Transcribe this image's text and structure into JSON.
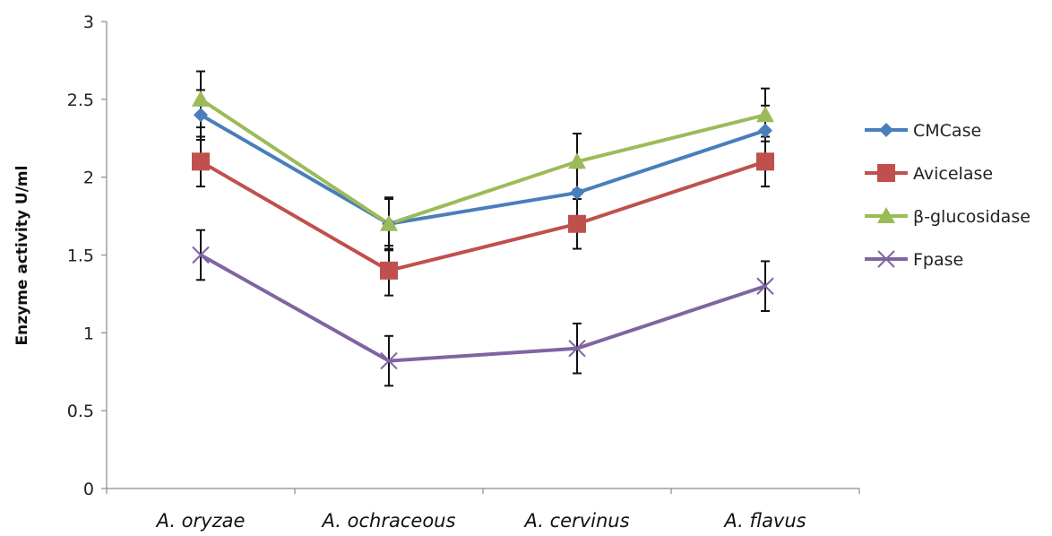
{
  "chart_data": {
    "type": "line",
    "categories": [
      "A. oryzae",
      "A. ochraceous",
      "A. cervinus",
      "A. flavus"
    ],
    "ylabel": "Enzyme activity U/ml",
    "xlabel": "",
    "ylim": [
      0,
      3
    ],
    "yticks": [
      "0",
      "0.5",
      "1",
      "1.5",
      "2",
      "2.5",
      "3"
    ],
    "grid": false,
    "legend_position": "right",
    "series": [
      {
        "name": "CMCase",
        "color": "#4a7ebb",
        "marker": "diamond",
        "values": [
          2.4,
          1.7,
          1.9,
          2.3
        ],
        "error": [
          0.16,
          0.16,
          0.16,
          0.16
        ]
      },
      {
        "name": "Avicelase",
        "color": "#c0504d",
        "marker": "square",
        "values": [
          2.1,
          1.4,
          1.7,
          2.1
        ],
        "error": [
          0.16,
          0.16,
          0.16,
          0.16
        ]
      },
      {
        "name": "β-glucosidase",
        "color": "#9bbb59",
        "marker": "triangle",
        "values": [
          2.5,
          1.7,
          2.1,
          2.4
        ],
        "error": [
          0.18,
          0.17,
          0.18,
          0.17
        ]
      },
      {
        "name": "Fpase",
        "color": "#8064a2",
        "marker": "x",
        "values": [
          1.5,
          0.82,
          0.9,
          1.3
        ],
        "error": [
          0.16,
          0.16,
          0.16,
          0.16
        ]
      }
    ]
  }
}
